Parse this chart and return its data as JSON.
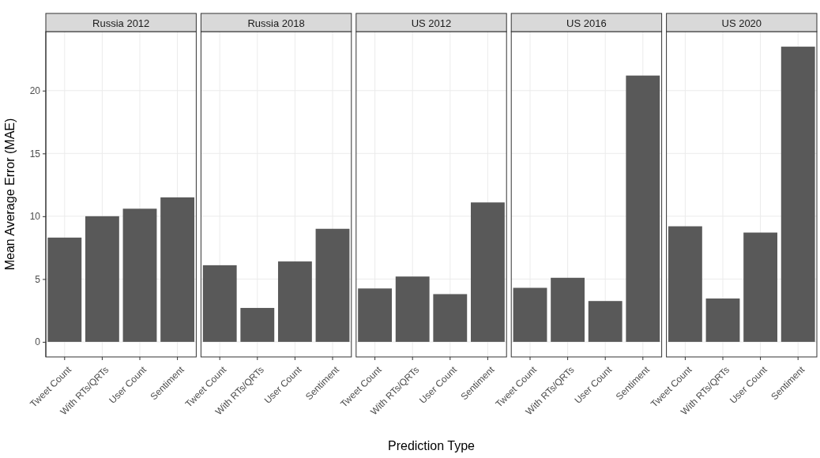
{
  "chart_data": [
    {
      "type": "bar",
      "title": "Russia 2012",
      "ylabel": "Mean Average Error (MAE)",
      "categories": [
        "Tweet Count",
        "With RTs/QRTs",
        "User Count",
        "Sentiment"
      ],
      "values": [
        8.3,
        10.0,
        10.6,
        11.5
      ],
      "color": "#595959",
      "ylim": [
        -1.2,
        24.7
      ],
      "yticks": [
        0,
        5,
        10,
        15,
        20
      ],
      "grid": true
    },
    {
      "type": "bar",
      "title": "Russia 2018",
      "categories": [
        "Tweet Count",
        "With RTs/QRTs",
        "User Count",
        "Sentiment"
      ],
      "values": [
        6.1,
        2.7,
        6.4,
        9.0
      ],
      "color": "#595959",
      "ylim": [
        -1.2,
        24.7
      ],
      "yticks": [
        0,
        5,
        10,
        15,
        20
      ],
      "grid": true,
      "tick_labels": "x"
    },
    {
      "type": "bar",
      "title": "US 2012",
      "xlabel": "Prediction Type",
      "categories": [
        "Tweet Count",
        "With RTs/QRTs",
        "User Count",
        "Sentiment"
      ],
      "values": [
        4.25,
        5.2,
        3.8,
        11.1
      ],
      "color": "#595959",
      "ylim": [
        -1.2,
        24.7
      ],
      "yticks": [
        0,
        5,
        10,
        15,
        20
      ],
      "grid": true,
      "tick_labels": "x"
    },
    {
      "type": "bar",
      "title": "US 2016",
      "categories": [
        "Tweet Count",
        "With RTs/QRTs",
        "User Count",
        "Sentiment"
      ],
      "values": [
        4.3,
        5.1,
        3.25,
        21.2
      ],
      "color": "#595959",
      "ylim": [
        -1.2,
        24.7
      ],
      "yticks": [
        0,
        5,
        10,
        15,
        20
      ],
      "grid": true,
      "tick_labels": "x"
    },
    {
      "type": "bar",
      "title": "US 2020",
      "categories": [
        "Tweet Count",
        "With RTs/QRTs",
        "User Count",
        "Sentiment"
      ],
      "values": [
        9.2,
        3.45,
        8.7,
        23.5
      ],
      "color": "#595959",
      "ylim": [
        -1.2,
        24.7
      ],
      "yticks": [
        0,
        5,
        10,
        15,
        20
      ],
      "grid": true,
      "tick_labels": "x"
    }
  ]
}
